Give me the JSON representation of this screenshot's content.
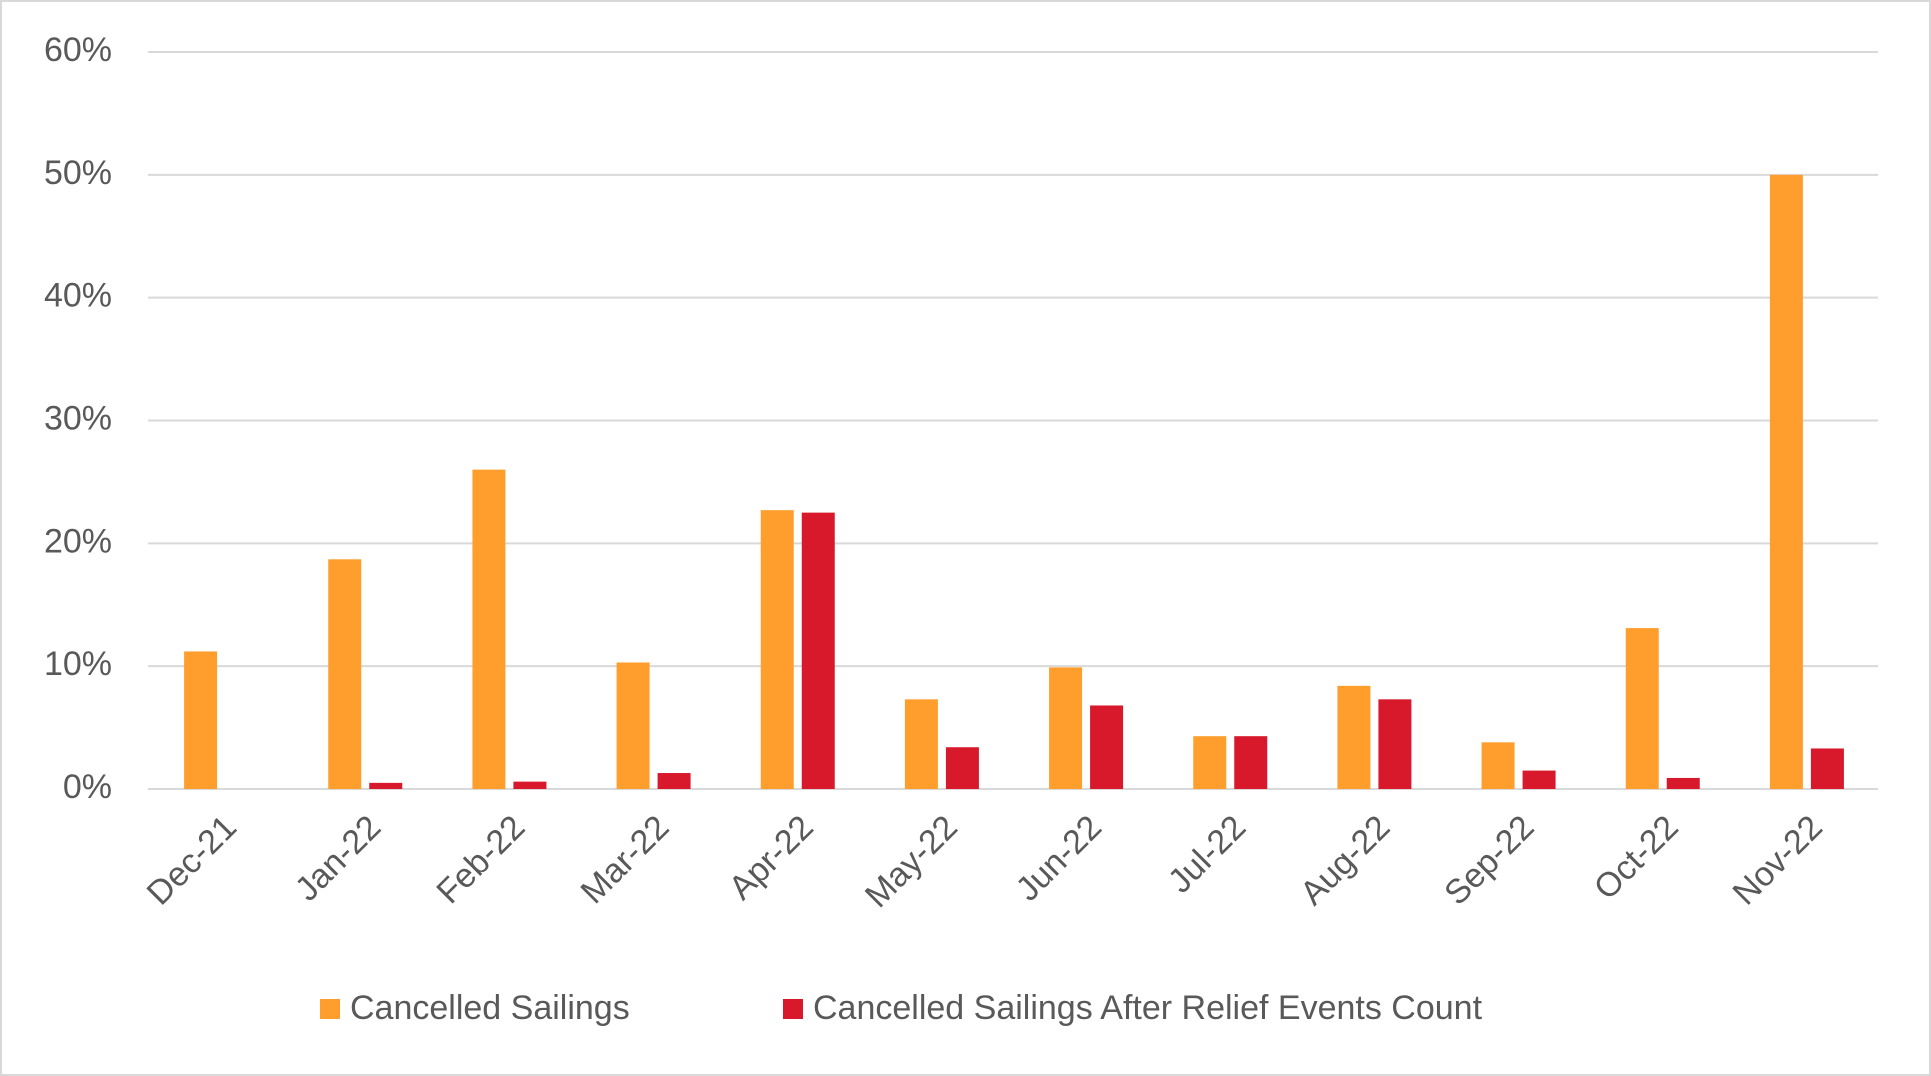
{
  "chart_data": {
    "type": "bar",
    "categories": [
      "Dec-21",
      "Jan-22",
      "Feb-22",
      "Mar-22",
      "Apr-22",
      "May-22",
      "Jun-22",
      "Jul-22",
      "Aug-22",
      "Sep-22",
      "Oct-22",
      "Nov-22"
    ],
    "series": [
      {
        "name": "Cancelled Sailings",
        "color": "#ff9e2c",
        "values": [
          11.2,
          18.7,
          26,
          10.3,
          22.7,
          7.3,
          9.9,
          4.3,
          8.4,
          3.8,
          13.1,
          50
        ]
      },
      {
        "name": "Cancelled Sailings After Relief Events Count",
        "color": "#d7192b",
        "values": [
          0,
          0.5,
          0.6,
          1.3,
          22.5,
          3.4,
          6.8,
          4.3,
          7.3,
          1.5,
          0.9,
          3.3
        ]
      }
    ],
    "ylim": [
      0,
      60
    ],
    "yticks": [
      {
        "value": 0,
        "label": "0%"
      },
      {
        "value": 10,
        "label": "10%"
      },
      {
        "value": 20,
        "label": "20%"
      },
      {
        "value": 30,
        "label": "30%"
      },
      {
        "value": 40,
        "label": "40%"
      },
      {
        "value": 50,
        "label": "50%"
      },
      {
        "value": 60,
        "label": "60%"
      }
    ],
    "grid": true,
    "legend": "bottom"
  }
}
